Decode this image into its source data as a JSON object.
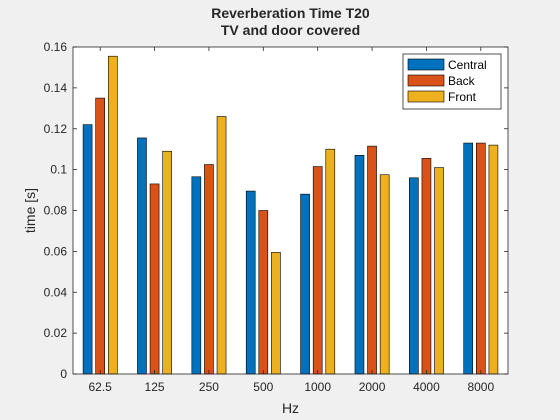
{
  "chart_data": {
    "type": "bar",
    "title": "Reverberation Time T20",
    "subtitle": "TV and door  covered",
    "xlabel": "Hz",
    "ylabel": "time [s]",
    "ylim": [
      0,
      0.16
    ],
    "yticks": [
      "0",
      "0.02",
      "0.04",
      "0.06",
      "0.08",
      "0.1",
      "0.12",
      "0.14",
      "0.16"
    ],
    "categories": [
      "62.5",
      "125",
      "250",
      "500",
      "1000",
      "2000",
      "4000",
      "8000"
    ],
    "grid": false,
    "legend_position": "top-right",
    "series": [
      {
        "name": "Central",
        "color": "#0072BD",
        "values": [
          0.122,
          0.1155,
          0.0965,
          0.0895,
          0.088,
          0.107,
          0.096,
          0.113
        ]
      },
      {
        "name": "Back",
        "color": "#D95319",
        "values": [
          0.135,
          0.093,
          0.1025,
          0.08,
          0.1015,
          0.1115,
          0.1055,
          0.113
        ]
      },
      {
        "name": "Front",
        "color": "#EDB120",
        "values": [
          0.1555,
          0.109,
          0.126,
          0.0595,
          0.11,
          0.0975,
          0.101,
          0.112
        ]
      }
    ]
  }
}
